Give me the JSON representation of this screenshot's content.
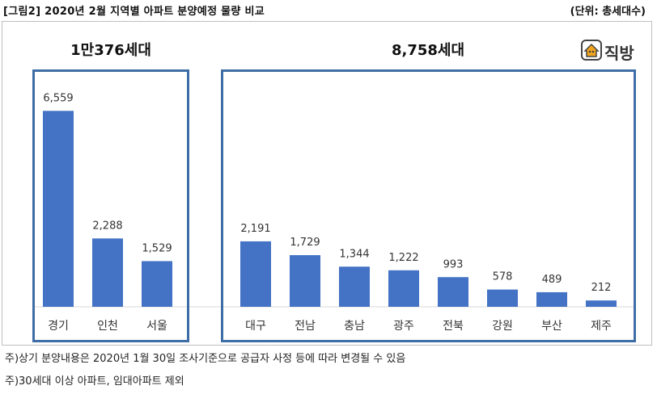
{
  "header": {
    "title": "[그림2] 2020년 2월 지역별 아파트 분양예정 물량 비교",
    "unit": "(단위: 총세대수)"
  },
  "groups": {
    "left_total": "1만376세대",
    "right_total": "8,758세대"
  },
  "logo": {
    "text": "직방",
    "icon": "house-icon"
  },
  "colors": {
    "bar": "#4472c4",
    "box": "#3f6da5"
  },
  "chart_data": {
    "type": "bar",
    "title": "[그림2] 2020년 2월 지역별 아파트 분양예정 물량 비교",
    "ylabel": "",
    "xlabel": "",
    "categories": [
      "경기",
      "인천",
      "서울",
      "대구",
      "전남",
      "충남",
      "광주",
      "전북",
      "강원",
      "부산",
      "제주"
    ],
    "values": [
      6559,
      2288,
      1529,
      2191,
      1729,
      1344,
      1222,
      993,
      578,
      489,
      212
    ],
    "value_labels": [
      "6,559",
      "2,288",
      "1,529",
      "2,191",
      "1,729",
      "1,344",
      "1,222",
      "993",
      "578",
      "489",
      "212"
    ],
    "ylim": [
      0,
      7000
    ],
    "grid": false
  },
  "notes": [
    "주)상기 분양내용은 2020년 1월 30일 조사기준으로 공급자 사정 등에 따라 변경될 수 있음",
    "주)30세대 이상 아파트, 임대아파트 제외"
  ]
}
